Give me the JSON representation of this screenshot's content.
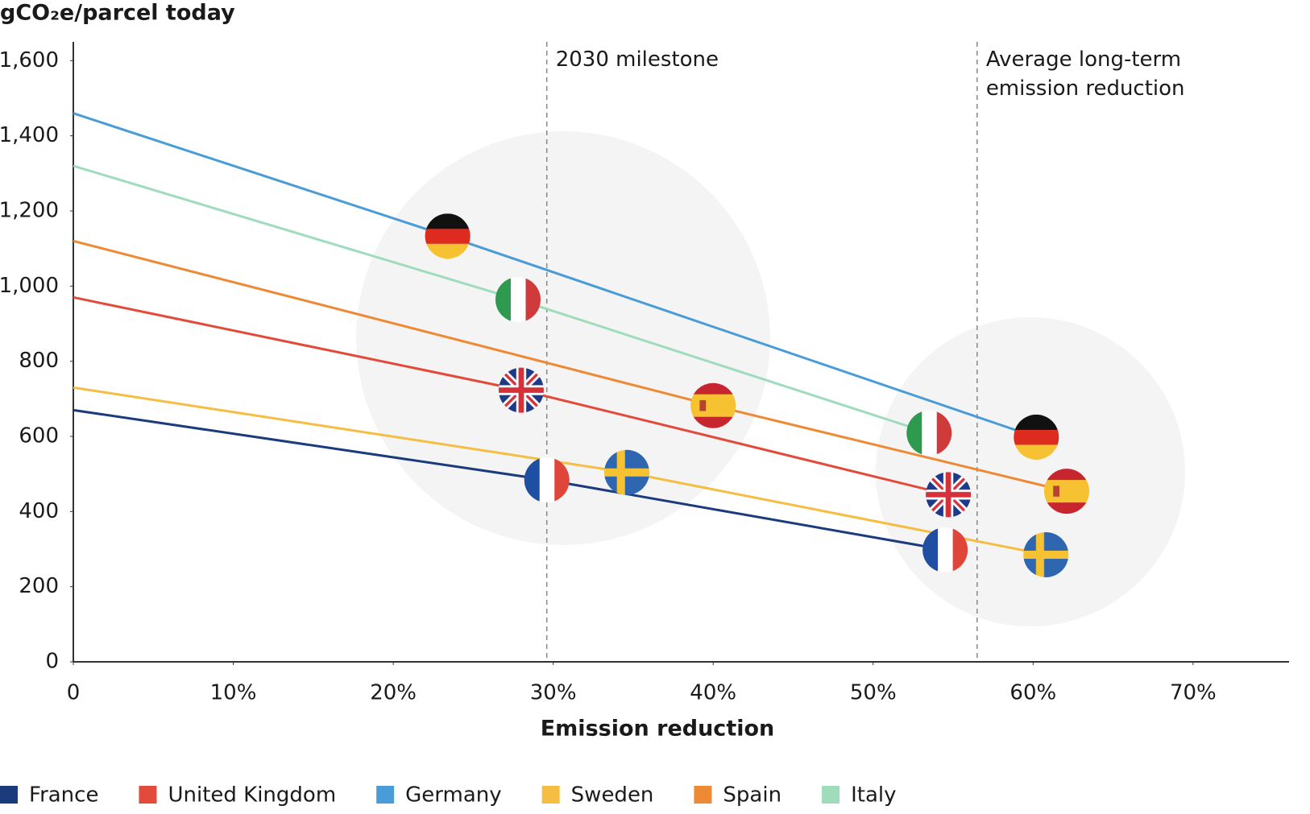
{
  "chart_data": {
    "type": "line",
    "title": "gCO₂e/parcel today",
    "x_label": "Emission reduction",
    "xlim": [
      0,
      76
    ],
    "xticks": [
      0,
      {
        "value": 10,
        "label": "10%"
      },
      {
        "value": 20,
        "label": "20%"
      },
      {
        "value": 30,
        "label": "30%"
      },
      {
        "value": 40,
        "label": "40%"
      },
      {
        "value": 50,
        "label": "50%"
      },
      {
        "value": 60,
        "label": "60%"
      },
      {
        "value": 70,
        "label": "70%"
      }
    ],
    "ylim": [
      0,
      1650
    ],
    "yticks": [
      0,
      200,
      400,
      600,
      800,
      {
        "value": 1000,
        "label": "1,000"
      },
      {
        "value": 1200,
        "label": "1,200"
      },
      {
        "value": 1400,
        "label": "1,400"
      },
      {
        "value": 1600,
        "label": "1,600"
      }
    ],
    "annotations": [
      {
        "x": 29.6,
        "label": "2030 milestone"
      },
      {
        "x": 56.5,
        "label": "Average long-term emission reduction"
      }
    ],
    "legend": "bottom",
    "series": [
      {
        "name": "France",
        "color": "#1b3b7d",
        "x": [
          0,
          29.6,
          54.5
        ],
        "values": [
          670,
          484,
          298
        ]
      },
      {
        "name": "United Kingdom",
        "color": "#e24a3a",
        "x": [
          0,
          28.0,
          54.7
        ],
        "values": [
          970,
          723,
          445
        ]
      },
      {
        "name": "Germany",
        "color": "#4a9cd8",
        "x": [
          0,
          23.4,
          60.2
        ],
        "values": [
          1460,
          1133,
          598
        ]
      },
      {
        "name": "Sweden",
        "color": "#f5bd42",
        "x": [
          0,
          34.6,
          60.8
        ],
        "values": [
          730,
          504,
          285
        ]
      },
      {
        "name": "Spain",
        "color": "#ee8a35",
        "x": [
          0,
          40.0,
          62.1
        ],
        "values": [
          1120,
          682,
          454
        ]
      },
      {
        "name": "Italy",
        "color": "#9fdcbc",
        "x": [
          0,
          27.8,
          53.5
        ],
        "values": [
          1320,
          964,
          609
        ]
      }
    ]
  }
}
